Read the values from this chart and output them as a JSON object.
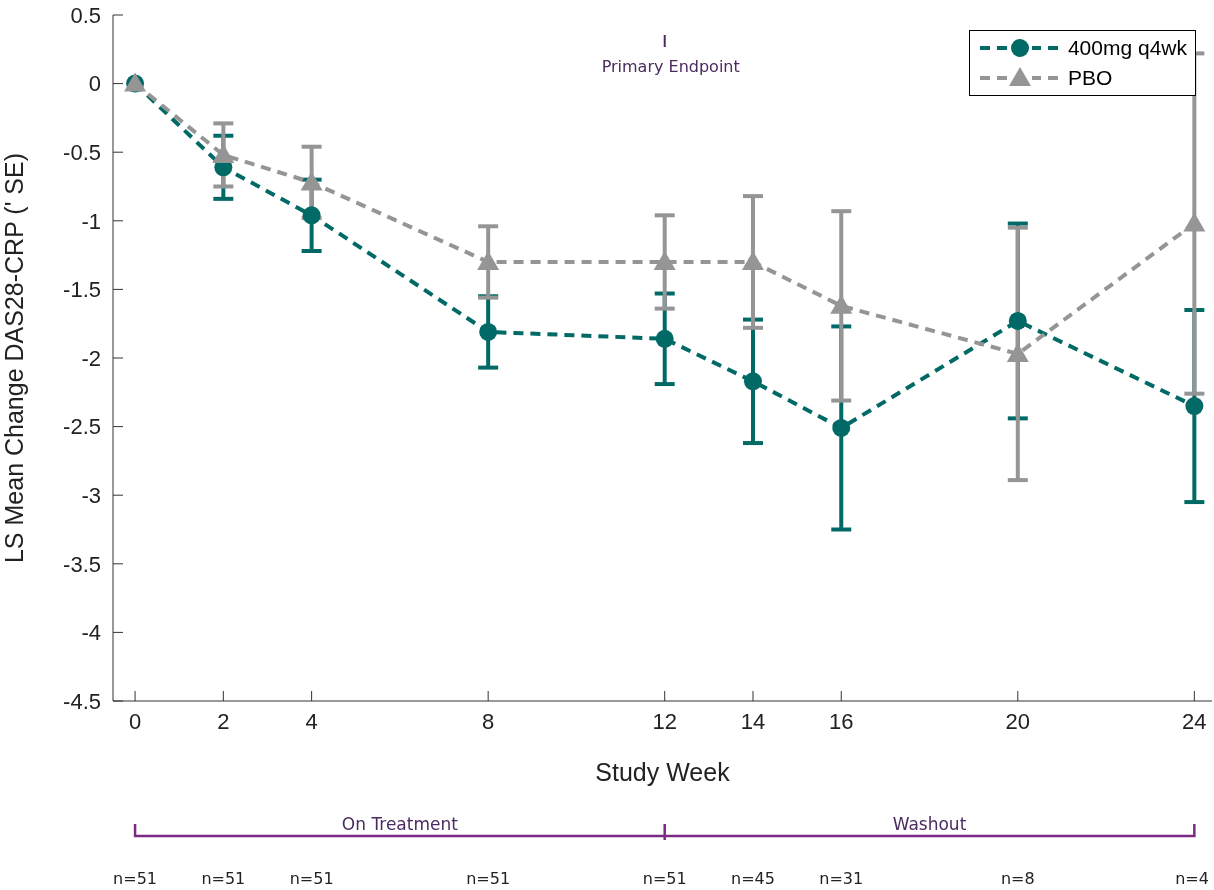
{
  "chart_data": {
    "type": "line",
    "xlabel": "Study Week",
    "ylabel": "LS Mean Change DAS28-CRP (' SE)",
    "x": [
      0,
      2,
      4,
      8,
      12,
      14,
      16,
      20,
      24
    ],
    "xlim": [
      -0.5,
      24.4
    ],
    "xticks": [
      0,
      2,
      4,
      8,
      12,
      14,
      16,
      20,
      24
    ],
    "ylim": [
      -4.5,
      0.5
    ],
    "yticks": [
      0.5,
      0,
      -0.5,
      -1,
      -1.5,
      -2,
      -2.5,
      -3,
      -3.5,
      -4,
      -4.5
    ],
    "series": [
      {
        "name": "400mg q4wk",
        "color": "#016a66",
        "marker": "circle",
        "line_style": "dashed",
        "values": [
          0,
          -0.61,
          -0.96,
          -1.81,
          -1.86,
          -2.17,
          -2.51,
          -1.73,
          -2.35
        ],
        "errors": [
          null,
          0.23,
          0.26,
          0.26,
          0.33,
          0.45,
          0.74,
          0.71,
          0.7
        ]
      },
      {
        "name": "PBO",
        "color": "#959595",
        "marker": "triangle",
        "line_style": "dashed",
        "values": [
          0,
          -0.52,
          -0.72,
          -1.3,
          -1.3,
          -1.3,
          -1.62,
          -1.97,
          -1.02
        ],
        "errors": [
          null,
          0.23,
          0.26,
          0.26,
          0.34,
          0.48,
          0.69,
          0.92,
          1.24
        ]
      }
    ],
    "annotations": [
      "Primary Endpoint",
      "On Treatment",
      "Washout",
      "n=51",
      "n=51",
      "n=51",
      "n=51",
      "n=51",
      "n=45",
      "n=31",
      "n=8",
      "n=4"
    ],
    "legend": "top right",
    "grid": false
  }
}
